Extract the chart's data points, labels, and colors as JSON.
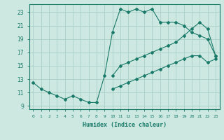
{
  "xlabel": "Humidex (Indice chaleur)",
  "line_color": "#1a7a6a",
  "bg_color": "#cce8e0",
  "grid_color": "#aacfc8",
  "xlim": [
    -0.5,
    23.5
  ],
  "ylim": [
    8.5,
    24.2
  ],
  "yticks": [
    9,
    11,
    13,
    15,
    17,
    19,
    21,
    23
  ],
  "curve1_x": [
    0,
    1,
    2,
    3,
    4,
    5,
    6,
    7,
    8,
    9,
    10,
    11,
    12,
    13,
    14,
    15,
    16,
    17,
    18,
    19,
    20,
    21,
    22,
    23
  ],
  "curve1_y": [
    12.5,
    11.5,
    11.0,
    10.5,
    10.0,
    10.5,
    10.0,
    9.5,
    9.5,
    13.5,
    20.0,
    23.5,
    23.0,
    23.5,
    23.0,
    23.5,
    21.5,
    21.5,
    21.5,
    21.0,
    20.0,
    19.5,
    19.0,
    16.5
  ],
  "curve2_x": [
    10,
    11,
    12,
    13,
    14,
    15,
    16,
    17,
    18,
    19,
    20,
    21,
    22,
    23
  ],
  "curve2_y": [
    13.5,
    15.0,
    15.5,
    16.0,
    16.5,
    17.0,
    17.5,
    18.0,
    18.5,
    19.5,
    20.5,
    21.5,
    20.5,
    16.5
  ],
  "curve3_x": [
    10,
    11,
    12,
    13,
    14,
    15,
    16,
    17,
    18,
    19,
    20,
    21,
    22,
    23
  ],
  "curve3_y": [
    11.5,
    12.0,
    12.5,
    13.0,
    13.5,
    14.0,
    14.5,
    15.0,
    15.5,
    16.0,
    16.5,
    16.5,
    15.5,
    16.0
  ],
  "xtick_labels": [
    "0",
    "1",
    "2",
    "3",
    "4",
    "5",
    "6",
    "7",
    "8",
    "9",
    "10",
    "11",
    "12",
    "13",
    "14",
    "15",
    "16",
    "17",
    "18",
    "19",
    "20",
    "21",
    "22",
    "23"
  ]
}
